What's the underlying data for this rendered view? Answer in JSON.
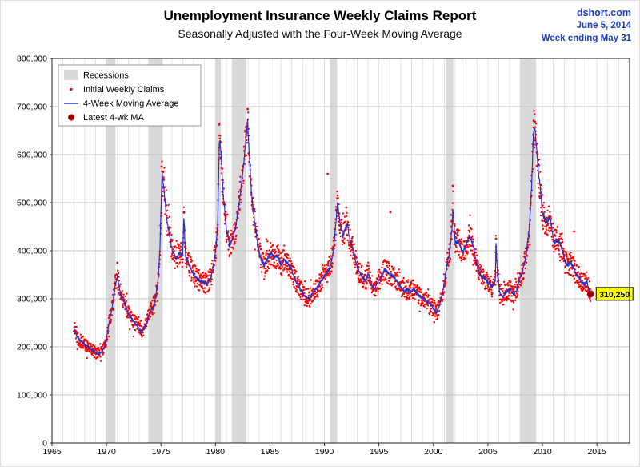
{
  "header": {
    "title": "Unemployment Insurance Weekly Claims Report",
    "subtitle": "Seasonally Adjusted with the Four-Week Moving Average",
    "source": "dshort.com",
    "date": "June 5, 2014",
    "week_ending": "Week ending May 31"
  },
  "colors": {
    "header_blue": "#1a3bc1",
    "recession_band": "#d9d9d9",
    "grid_h": "#c4c4c4",
    "grid_v": "#dcdcdc",
    "scatter_red": "#ff0000",
    "ma_blue": "#2b32cc",
    "latest_maroon": "#8b0000",
    "callout_bg": "#ffff00",
    "plot_border": "#222222"
  },
  "legend": {
    "items": [
      {
        "label": "Recessions",
        "type": "band"
      },
      {
        "label": "Initial Weekly Claims",
        "type": "dot"
      },
      {
        "label": "4-Week Moving Average",
        "type": "line"
      },
      {
        "label": "Latest 4-wk MA",
        "type": "big-dot"
      }
    ]
  },
  "chart_data": {
    "type": "line+scatter",
    "title": "Unemployment Insurance Weekly Claims Report",
    "subtitle": "Seasonally Adjusted with the Four-Week Moving Average",
    "xlabel": "",
    "ylabel": "",
    "x_range": [
      1965,
      2018
    ],
    "ylim": [
      0,
      800000
    ],
    "grid": true,
    "legend_position": "top-left",
    "x_ticks": [
      1965,
      1970,
      1975,
      1980,
      1985,
      1990,
      1995,
      2000,
      2005,
      2010,
      2015
    ],
    "y_ticks": [
      {
        "v": 0,
        "label": "0"
      },
      {
        "v": 100000,
        "label": "100,000"
      },
      {
        "v": 200000,
        "label": "200,000"
      },
      {
        "v": 300000,
        "label": "300,000"
      },
      {
        "v": 400000,
        "label": "400,000"
      },
      {
        "v": 500000,
        "label": "500,000"
      },
      {
        "v": 600000,
        "label": "600,000"
      },
      {
        "v": 700000,
        "label": "700,000"
      },
      {
        "v": 800000,
        "label": "800,000"
      }
    ],
    "recessions": [
      [
        1969.92,
        1970.83
      ],
      [
        1973.83,
        1975.17
      ],
      [
        1980.0,
        1980.5
      ],
      [
        1981.5,
        1982.83
      ],
      [
        1990.5,
        1991.17
      ],
      [
        2001.17,
        2001.83
      ],
      [
        2007.92,
        2009.42
      ]
    ],
    "ma_series_units": "thousands of claims, 4-week moving average, [decimal_year, value]",
    "ma_series": [
      [
        1967.0,
        240
      ],
      [
        1967.3,
        220
      ],
      [
        1967.6,
        213
      ],
      [
        1968.0,
        205
      ],
      [
        1968.4,
        198
      ],
      [
        1968.8,
        192
      ],
      [
        1969.2,
        185
      ],
      [
        1969.6,
        190
      ],
      [
        1969.9,
        205
      ],
      [
        1970.2,
        245
      ],
      [
        1970.5,
        280
      ],
      [
        1970.8,
        330
      ],
      [
        1971.0,
        345
      ],
      [
        1971.3,
        310
      ],
      [
        1971.6,
        295
      ],
      [
        1972.0,
        270
      ],
      [
        1972.4,
        255
      ],
      [
        1972.8,
        245
      ],
      [
        1973.2,
        230
      ],
      [
        1973.6,
        245
      ],
      [
        1974.0,
        270
      ],
      [
        1974.4,
        290
      ],
      [
        1974.7,
        330
      ],
      [
        1974.9,
        400
      ],
      [
        1975.1,
        560
      ],
      [
        1975.25,
        535
      ],
      [
        1975.5,
        470
      ],
      [
        1975.8,
        430
      ],
      [
        1976.1,
        395
      ],
      [
        1976.4,
        385
      ],
      [
        1976.7,
        395
      ],
      [
        1977.0,
        390
      ],
      [
        1977.1,
        475
      ],
      [
        1977.25,
        390
      ],
      [
        1977.6,
        370
      ],
      [
        1978.0,
        350
      ],
      [
        1978.4,
        340
      ],
      [
        1978.8,
        335
      ],
      [
        1979.2,
        330
      ],
      [
        1979.6,
        345
      ],
      [
        1980.0,
        395
      ],
      [
        1980.2,
        450
      ],
      [
        1980.35,
        630
      ],
      [
        1980.5,
        610
      ],
      [
        1980.7,
        520
      ],
      [
        1981.0,
        445
      ],
      [
        1981.3,
        410
      ],
      [
        1981.6,
        425
      ],
      [
        1981.9,
        455
      ],
      [
        1982.2,
        505
      ],
      [
        1982.5,
        560
      ],
      [
        1982.75,
        620
      ],
      [
        1982.95,
        672
      ],
      [
        1983.1,
        600
      ],
      [
        1983.3,
        520
      ],
      [
        1983.6,
        460
      ],
      [
        1983.9,
        410
      ],
      [
        1984.2,
        380
      ],
      [
        1984.5,
        370
      ],
      [
        1984.8,
        385
      ],
      [
        1985.1,
        395
      ],
      [
        1985.4,
        385
      ],
      [
        1985.7,
        390
      ],
      [
        1986.0,
        370
      ],
      [
        1986.3,
        380
      ],
      [
        1986.6,
        375
      ],
      [
        1987.0,
        360
      ],
      [
        1987.4,
        335
      ],
      [
        1987.8,
        320
      ],
      [
        1988.2,
        305
      ],
      [
        1988.6,
        300
      ],
      [
        1989.0,
        315
      ],
      [
        1989.4,
        325
      ],
      [
        1989.8,
        340
      ],
      [
        1990.2,
        355
      ],
      [
        1990.5,
        365
      ],
      [
        1990.8,
        395
      ],
      [
        1991.0,
        445
      ],
      [
        1991.2,
        500
      ],
      [
        1991.4,
        460
      ],
      [
        1991.7,
        430
      ],
      [
        1991.9,
        445
      ],
      [
        1992.1,
        455
      ],
      [
        1992.35,
        420
      ],
      [
        1992.6,
        405
      ],
      [
        1992.9,
        375
      ],
      [
        1993.2,
        355
      ],
      [
        1993.5,
        345
      ],
      [
        1993.8,
        335
      ],
      [
        1994.0,
        355
      ],
      [
        1994.3,
        330
      ],
      [
        1994.6,
        320
      ],
      [
        1994.9,
        335
      ],
      [
        1995.2,
        345
      ],
      [
        1995.5,
        360
      ],
      [
        1995.8,
        355
      ],
      [
        1996.1,
        350
      ],
      [
        1996.4,
        345
      ],
      [
        1996.7,
        335
      ],
      [
        1997.0,
        325
      ],
      [
        1997.3,
        315
      ],
      [
        1997.6,
        320
      ],
      [
        1997.9,
        315
      ],
      [
        1998.2,
        320
      ],
      [
        1998.5,
        310
      ],
      [
        1998.8,
        305
      ],
      [
        1999.1,
        300
      ],
      [
        1999.4,
        295
      ],
      [
        1999.7,
        290
      ],
      [
        2000.0,
        280
      ],
      [
        2000.3,
        270
      ],
      [
        2000.6,
        290
      ],
      [
        2000.9,
        320
      ],
      [
        2001.2,
        365
      ],
      [
        2001.5,
        400
      ],
      [
        2001.72,
        450
      ],
      [
        2001.78,
        490
      ],
      [
        2002.0,
        415
      ],
      [
        2002.3,
        420
      ],
      [
        2002.6,
        400
      ],
      [
        2002.9,
        405
      ],
      [
        2003.1,
        420
      ],
      [
        2003.35,
        430
      ],
      [
        2003.6,
        415
      ],
      [
        2003.9,
        380
      ],
      [
        2004.2,
        355
      ],
      [
        2004.5,
        345
      ],
      [
        2004.8,
        340
      ],
      [
        2005.1,
        330
      ],
      [
        2005.4,
        325
      ],
      [
        2005.68,
        340
      ],
      [
        2005.74,
        420
      ],
      [
        2005.85,
        360
      ],
      [
        2006.1,
        310
      ],
      [
        2006.4,
        305
      ],
      [
        2006.7,
        315
      ],
      [
        2007.0,
        320
      ],
      [
        2007.3,
        310
      ],
      [
        2007.6,
        315
      ],
      [
        2007.9,
        340
      ],
      [
        2008.2,
        360
      ],
      [
        2008.5,
        390
      ],
      [
        2008.8,
        450
      ],
      [
        2009.0,
        530
      ],
      [
        2009.15,
        630
      ],
      [
        2009.25,
        658
      ],
      [
        2009.4,
        635
      ],
      [
        2009.6,
        570
      ],
      [
        2009.8,
        535
      ],
      [
        2010.0,
        480
      ],
      [
        2010.2,
        465
      ],
      [
        2010.45,
        460
      ],
      [
        2010.7,
        470
      ],
      [
        2010.9,
        440
      ],
      [
        2011.1,
        415
      ],
      [
        2011.35,
        425
      ],
      [
        2011.6,
        415
      ],
      [
        2011.85,
        400
      ],
      [
        2012.1,
        375
      ],
      [
        2012.35,
        370
      ],
      [
        2012.6,
        375
      ],
      [
        2012.85,
        365
      ],
      [
        2013.1,
        350
      ],
      [
        2013.35,
        345
      ],
      [
        2013.6,
        335
      ],
      [
        2013.85,
        330
      ],
      [
        2014.1,
        335
      ],
      [
        2014.25,
        320
      ],
      [
        2014.42,
        310.25
      ]
    ],
    "scatter": {
      "name": "Initial Weekly Claims",
      "start": 1967.0,
      "end": 2014.42,
      "interval_years": 0.01923,
      "noise_fraction": 0.065
    },
    "scatter_outliers": [
      [
        1971.0,
        375
      ],
      [
        1975.05,
        575
      ],
      [
        1977.1,
        480
      ],
      [
        1980.35,
        640
      ],
      [
        1982.95,
        695
      ],
      [
        1990.3,
        560
      ],
      [
        1992.0,
        490
      ],
      [
        1996.05,
        480
      ],
      [
        2001.78,
        535
      ],
      [
        2005.74,
        425
      ],
      [
        2009.2,
        670
      ],
      [
        2012.9,
        440
      ]
    ],
    "latest": {
      "x": 2014.42,
      "value": 310250,
      "label": "310,250"
    }
  }
}
